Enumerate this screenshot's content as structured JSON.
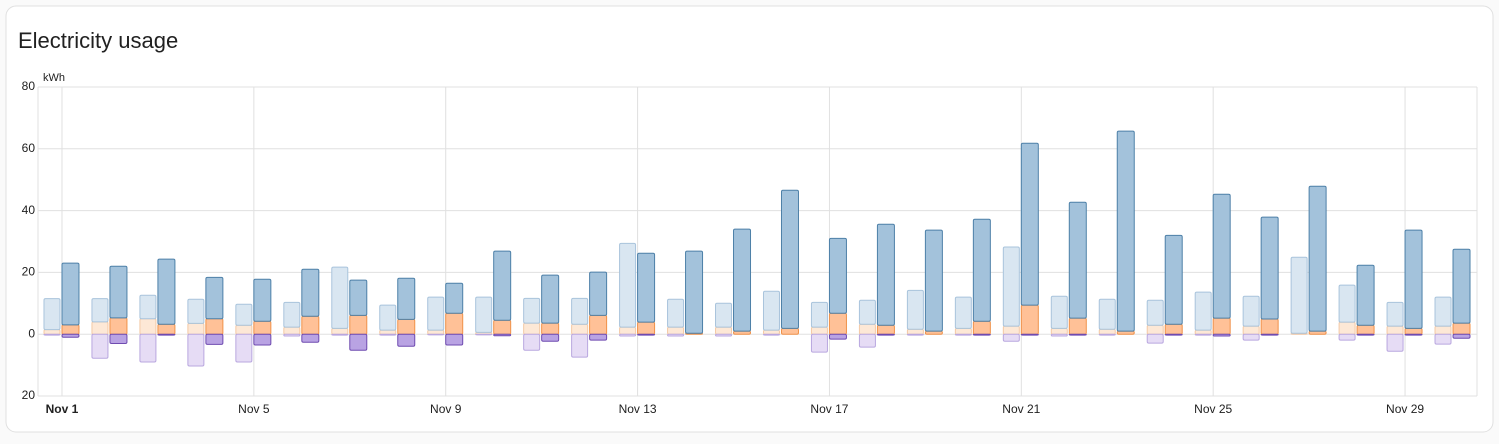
{
  "chart_data": {
    "type": "bar",
    "title": "Electricity usage",
    "unit": "kWh",
    "categories": [
      "Nov 1",
      null,
      null,
      null,
      "Nov 5",
      null,
      null,
      null,
      "Nov 9",
      null,
      null,
      null,
      "Nov 13",
      null,
      null,
      null,
      "Nov 17",
      null,
      null,
      null,
      "Nov 21",
      null,
      null,
      null,
      "Nov 25",
      null,
      null,
      null,
      "Nov 29",
      null
    ],
    "ylim": [
      -20,
      80
    ],
    "yticks": [
      80,
      60,
      40,
      20,
      0,
      {
        "value": -20,
        "label": "20"
      }
    ],
    "grid": true,
    "series": [
      {
        "position": "left",
        "color": "#fde8d6",
        "stroke": "#f3c9a6",
        "values": [
          1.5,
          4,
          5,
          3.5,
          2.9,
          2.3,
          1.9,
          1.3,
          1.3,
          0.6,
          3.6,
          3.2,
          2.3,
          2.3,
          2.3,
          1.3,
          2.3,
          3.2,
          1.6,
          1.9,
          2.6,
          1.9,
          1.6,
          2.9,
          1.3,
          2.6,
          0.3,
          3.9,
          2.6,
          2.6
        ]
      },
      {
        "position": "left",
        "color": "#d9e6f1",
        "stroke": "#a9c4dc",
        "values": [
          10,
          7.5,
          7.6,
          7.8,
          6.8,
          8,
          19.8,
          8.1,
          10.7,
          11.4,
          8,
          8.4,
          27.1,
          9,
          7.7,
          12.6,
          8,
          7.8,
          12.6,
          10.1,
          25.6,
          10.4,
          9.7,
          8.1,
          12.3,
          9.7,
          24.6,
          12,
          7.7,
          9.4
        ]
      },
      {
        "position": "left",
        "color": "#e6dcf5",
        "stroke": "#b9a7df",
        "values": [
          -0.3,
          -7.8,
          -9,
          -10.3,
          -9,
          -0.6,
          -0.3,
          -0.3,
          -0.2,
          -0.2,
          -5.2,
          -7.4,
          -0.6,
          -0.6,
          -0.6,
          -0.3,
          -5.8,
          -4.2,
          -0.3,
          -0.3,
          -2.3,
          -0.6,
          -0.3,
          -2.9,
          -0.3,
          -1.9,
          0,
          -1.9,
          -5.5,
          -3.2
        ]
      },
      {
        "position": "right",
        "color": "#ffc197",
        "stroke": "#f0924a",
        "values": [
          3,
          5.3,
          3.2,
          5,
          4.2,
          5.8,
          6.1,
          4.8,
          6.8,
          4.5,
          3.6,
          6.1,
          3.9,
          0.3,
          1,
          1.9,
          6.8,
          2.9,
          1,
          4.2,
          9.4,
          5.2,
          1,
          3.2,
          5.2,
          4.9,
          1,
          2.9,
          1.9,
          3.6
        ]
      },
      {
        "position": "right",
        "color": "#a3c2db",
        "stroke": "#4d80a8",
        "values": [
          20,
          16.7,
          21.1,
          13.4,
          13.6,
          15.2,
          11.4,
          13.3,
          9.7,
          22.4,
          15.5,
          14,
          22.3,
          26.6,
          33,
          44.7,
          24.2,
          32.7,
          32.7,
          33,
          52.4,
          37.5,
          64.7,
          28.8,
          40.1,
          33,
          46.9,
          19.4,
          31.8,
          23.9
        ]
      },
      {
        "position": "right",
        "color": "#b9a3e3",
        "stroke": "#6f4bb0",
        "values": [
          -1,
          -3,
          -0.3,
          -3.3,
          -3.5,
          -2.6,
          -5.2,
          -3.9,
          -3.5,
          -0.5,
          -2.3,
          -1.9,
          -0.3,
          0,
          0,
          0,
          -1.6,
          -0.3,
          0,
          -0.3,
          -0.3,
          -0.3,
          0,
          -0.3,
          -0.6,
          -0.3,
          0,
          -0.3,
          -0.3,
          -1.3
        ]
      }
    ]
  }
}
